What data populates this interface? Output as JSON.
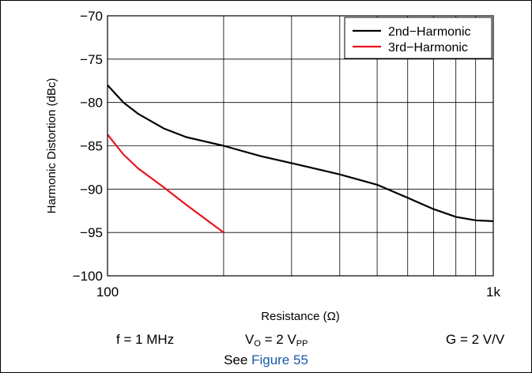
{
  "chart_data": {
    "type": "line",
    "xlabel": "Resistance (Ω)",
    "ylabel": "Harmonic Distortion (dBc)",
    "xscale": "log",
    "xlim": [
      100,
      1000
    ],
    "ylim": [
      -100,
      -70
    ],
    "xticks": [
      100,
      1000
    ],
    "xtick_labels": [
      "100",
      "1k"
    ],
    "yticks": [
      -70,
      -75,
      -80,
      -85,
      -90,
      -95,
      -100
    ],
    "ytick_labels": [
      "−70",
      "−75",
      "−80",
      "−85",
      "−90",
      "−95",
      "−100"
    ],
    "grid": true,
    "legend_position": "top-right",
    "series": [
      {
        "name": "2nd−Harmonic",
        "color": "#000000",
        "x": [
          100,
          110,
          120,
          140,
          160,
          200,
          250,
          300,
          400,
          500,
          600,
          700,
          800,
          900,
          1000
        ],
        "y": [
          -78.0,
          -80.0,
          -81.3,
          -83.0,
          -84.0,
          -85.0,
          -86.2,
          -87.0,
          -88.3,
          -89.5,
          -91.0,
          -92.3,
          -93.2,
          -93.6,
          -93.7
        ]
      },
      {
        "name": "3rd−Harmonic",
        "color": "#e8141c",
        "x": [
          100,
          110,
          120,
          140,
          160,
          200
        ],
        "y": [
          -83.7,
          -86.0,
          -87.6,
          -89.8,
          -91.8,
          -95.0
        ]
      }
    ]
  },
  "conditions": {
    "freq": "f = 1 MHz",
    "vo_main": "V",
    "vo_sub1": "O",
    "vo_mid": " = 2 V",
    "vo_sub2": "PP",
    "gain": "G = 2 V/V"
  },
  "see_also": {
    "prefix": "See ",
    "link": "Figure 55"
  }
}
